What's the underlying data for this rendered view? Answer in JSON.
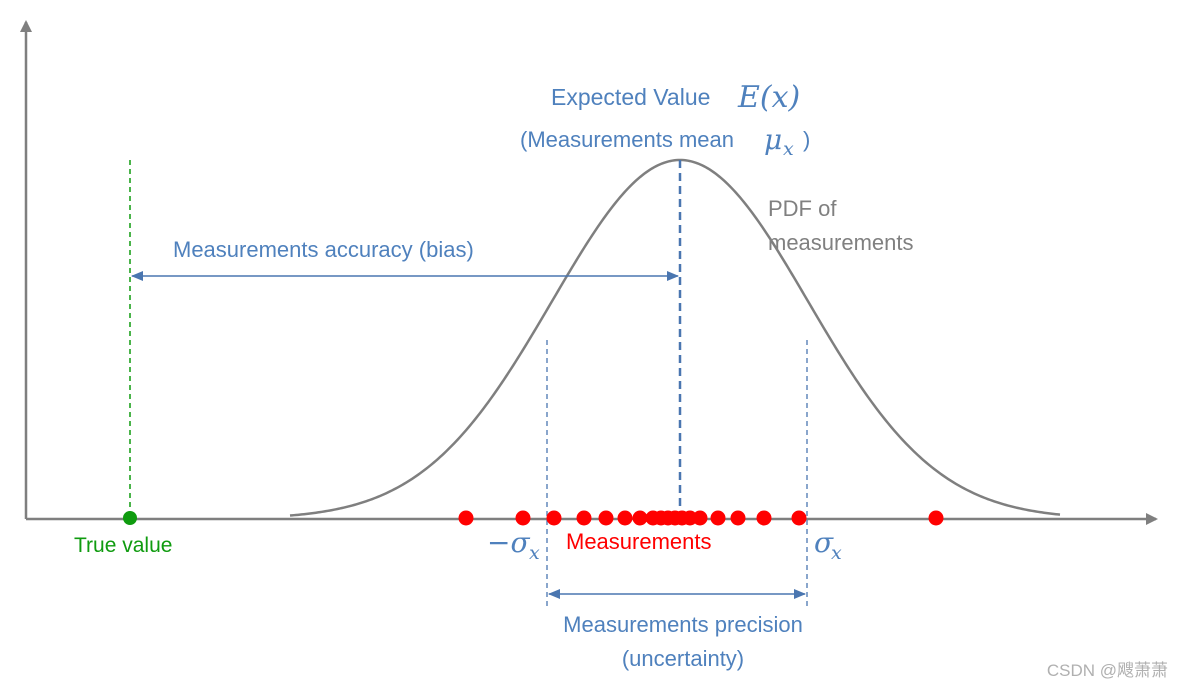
{
  "labels": {
    "expected_value": "Expected Value",
    "expected_value_symbol": "E(x)",
    "mean_open": "(Measurements mean",
    "mean_symbol": "μ",
    "mean_subscript": "x",
    "mean_close": ")",
    "pdf_line1": "PDF of",
    "pdf_line2": "measurements",
    "accuracy": "Measurements accuracy (bias)",
    "true_value": "True value",
    "measurements": "Measurements",
    "minus_sigma": "−σ",
    "minus_sigma_sub": "x",
    "plus_sigma": "σ",
    "plus_sigma_sub": "x",
    "precision_line1": "Measurements precision",
    "precision_line2": "(uncertainty)",
    "watermark": "CSDN @飕萧萧"
  },
  "colors": {
    "axis": "#7f7f7f",
    "curve": "#7f7f7f",
    "blue_text": "#4f81bd",
    "blue_line": "#4a76b0",
    "green": "#0f9b0f",
    "red": "#ff0000",
    "gray_text": "#808080",
    "watermark": "#b0b0b0"
  }
}
